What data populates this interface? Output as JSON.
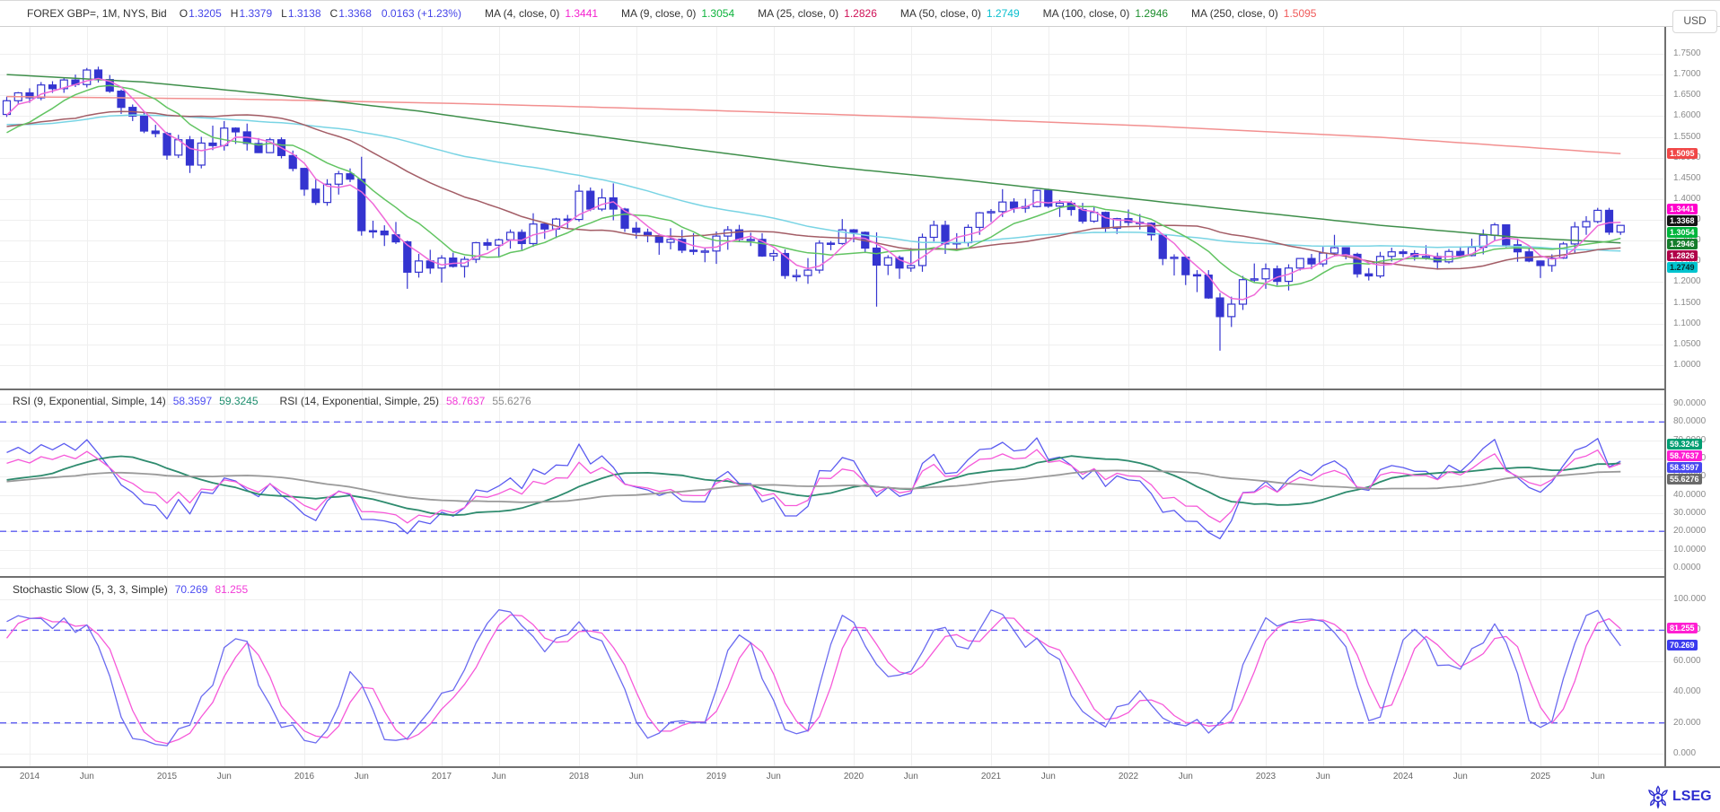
{
  "header": {
    "symbol": "FOREX GBP=, 1M, NYS, Bid",
    "value_color": "#4545e8",
    "fields": [
      {
        "k": "O",
        "v": "1.3205"
      },
      {
        "k": "H",
        "v": "1.3379"
      },
      {
        "k": "L",
        "v": "1.3138"
      },
      {
        "k": "C",
        "v": "1.3368"
      },
      {
        "k": "",
        "v": "0.0163 (+1.23%)"
      }
    ],
    "mas": [
      {
        "label": "MA (4, close, 0)",
        "value": "1.3441",
        "color": "#f421cf"
      },
      {
        "label": "MA (9, close, 0)",
        "value": "1.3054",
        "color": "#0db33c"
      },
      {
        "label": "MA (25, close, 0)",
        "value": "1.2826",
        "color": "#cf1257"
      },
      {
        "label": "MA (50, close, 0)",
        "value": "1.2749",
        "color": "#0abfcf"
      },
      {
        "label": "MA (100, close, 0)",
        "value": "1.2946",
        "color": "#1e8e2e"
      },
      {
        "label": "MA (250, close, 0)",
        "value": "1.5095",
        "color": "#f05a5a"
      }
    ],
    "currency": "USD"
  },
  "rsi_legend": {
    "label1": "RSI (9, Exponential, Simple, 14)",
    "v1": "58.3597",
    "v2": "59.3245",
    "label2": "RSI (14, Exponential, Simple, 25)",
    "v3": "58.7637",
    "v4": "55.6276",
    "c1": "#4d4df2",
    "c2": "#1e8e6e",
    "c3": "#f23bd8",
    "c4": "#8c8c8c"
  },
  "stoch_legend": {
    "label": "Stochastic Slow (5, 3, 3, Simple)",
    "v1": "70.269",
    "v2": "81.255",
    "c1": "#4d4df2",
    "c2": "#f23bd8"
  },
  "footer": {
    "brand": "LSEG",
    "color": "#2d2dd0"
  },
  "chart_data": {
    "type": "candlestick",
    "title": "FOREX GBP=, 1M, NYS, Bid - GBP/USD monthly with MA overlays, RSI and Stochastic Slow panels",
    "start_month": "2013-11",
    "months_shown": 142,
    "x_ticks": [
      [
        "2014",
        2
      ],
      [
        "Jun",
        7
      ],
      [
        "2015",
        14
      ],
      [
        "Jun",
        19
      ],
      [
        "2016",
        26
      ],
      [
        "Jun",
        31
      ],
      [
        "2017",
        38
      ],
      [
        "Jun",
        43
      ],
      [
        "2018",
        50
      ],
      [
        "Jun",
        55
      ],
      [
        "2019",
        62
      ],
      [
        "Jun",
        67
      ],
      [
        "2020",
        74
      ],
      [
        "Jun",
        79
      ],
      [
        "2021",
        86
      ],
      [
        "Jun",
        91
      ],
      [
        "2022",
        98
      ],
      [
        "Jun",
        103
      ],
      [
        "2023",
        110
      ],
      [
        "Jun",
        115
      ],
      [
        "2024",
        122
      ],
      [
        "Jun",
        127
      ],
      [
        "2025",
        134
      ],
      [
        "Jun",
        139
      ]
    ],
    "main": {
      "ylim": [
        1.0,
        1.75
      ],
      "label_step": 0.05,
      "decimals": 4,
      "grid": true,
      "up_color": "#ffffff",
      "down_color": "#3434d0",
      "outline_color": "#3434d0"
    },
    "candles": [
      [
        1.604,
        1.647,
        1.598,
        1.637
      ],
      [
        1.637,
        1.658,
        1.629,
        1.656
      ],
      [
        1.656,
        1.667,
        1.632,
        1.644
      ],
      [
        1.644,
        1.682,
        1.638,
        1.675
      ],
      [
        1.675,
        1.684,
        1.656,
        1.666
      ],
      [
        1.666,
        1.692,
        1.656,
        1.687
      ],
      [
        1.687,
        1.7,
        1.67,
        1.676
      ],
      [
        1.676,
        1.716,
        1.669,
        1.711
      ],
      [
        1.711,
        1.719,
        1.681,
        1.688
      ],
      [
        1.688,
        1.699,
        1.656,
        1.66
      ],
      [
        1.66,
        1.664,
        1.605,
        1.621
      ],
      [
        1.621,
        1.628,
        1.588,
        1.6
      ],
      [
        1.6,
        1.609,
        1.559,
        1.564
      ],
      [
        1.564,
        1.579,
        1.549,
        1.558
      ],
      [
        1.558,
        1.562,
        1.495,
        1.506
      ],
      [
        1.506,
        1.555,
        1.499,
        1.543
      ],
      [
        1.543,
        1.552,
        1.463,
        1.482
      ],
      [
        1.482,
        1.55,
        1.474,
        1.535
      ],
      [
        1.535,
        1.577,
        1.518,
        1.529
      ],
      [
        1.529,
        1.588,
        1.517,
        1.571
      ],
      [
        1.571,
        1.573,
        1.533,
        1.562
      ],
      [
        1.562,
        1.582,
        1.517,
        1.534
      ],
      [
        1.534,
        1.547,
        1.511,
        1.512
      ],
      [
        1.512,
        1.548,
        1.511,
        1.543
      ],
      [
        1.543,
        1.549,
        1.498,
        1.505
      ],
      [
        1.505,
        1.517,
        1.467,
        1.474
      ],
      [
        1.474,
        1.475,
        1.408,
        1.424
      ],
      [
        1.424,
        1.447,
        1.386,
        1.392
      ],
      [
        1.392,
        1.448,
        1.384,
        1.436
      ],
      [
        1.436,
        1.468,
        1.411,
        1.461
      ],
      [
        1.461,
        1.474,
        1.441,
        1.448
      ],
      [
        1.448,
        1.502,
        1.312,
        1.324
      ],
      [
        1.324,
        1.348,
        1.306,
        1.323
      ],
      [
        1.323,
        1.337,
        1.287,
        1.314
      ],
      [
        1.314,
        1.345,
        1.292,
        1.297
      ],
      [
        1.297,
        1.3,
        1.184,
        1.224
      ],
      [
        1.224,
        1.268,
        1.211,
        1.251
      ],
      [
        1.251,
        1.278,
        1.22,
        1.234
      ],
      [
        1.234,
        1.265,
        1.199,
        1.258
      ],
      [
        1.258,
        1.271,
        1.235,
        1.238
      ],
      [
        1.238,
        1.262,
        1.211,
        1.255
      ],
      [
        1.255,
        1.297,
        1.246,
        1.295
      ],
      [
        1.295,
        1.305,
        1.277,
        1.289
      ],
      [
        1.289,
        1.305,
        1.259,
        1.302
      ],
      [
        1.302,
        1.327,
        1.281,
        1.32
      ],
      [
        1.32,
        1.327,
        1.278,
        1.293
      ],
      [
        1.293,
        1.366,
        1.285,
        1.34
      ],
      [
        1.34,
        1.344,
        1.304,
        1.328
      ],
      [
        1.328,
        1.355,
        1.306,
        1.352
      ],
      [
        1.352,
        1.362,
        1.33,
        1.351
      ],
      [
        1.351,
        1.435,
        1.346,
        1.419
      ],
      [
        1.419,
        1.428,
        1.371,
        1.376
      ],
      [
        1.376,
        1.425,
        1.371,
        1.403
      ],
      [
        1.403,
        1.438,
        1.349,
        1.376
      ],
      [
        1.376,
        1.379,
        1.321,
        1.33
      ],
      [
        1.33,
        1.345,
        1.305,
        1.32
      ],
      [
        1.32,
        1.329,
        1.296,
        1.312
      ],
      [
        1.312,
        1.317,
        1.266,
        1.296
      ],
      [
        1.296,
        1.33,
        1.279,
        1.303
      ],
      [
        1.303,
        1.326,
        1.27,
        1.277
      ],
      [
        1.277,
        1.318,
        1.266,
        1.275
      ],
      [
        1.275,
        1.284,
        1.248,
        1.275
      ],
      [
        1.275,
        1.322,
        1.244,
        1.311
      ],
      [
        1.311,
        1.335,
        1.278,
        1.326
      ],
      [
        1.326,
        1.338,
        1.296,
        1.303
      ],
      [
        1.303,
        1.319,
        1.287,
        1.303
      ],
      [
        1.303,
        1.318,
        1.261,
        1.263
      ],
      [
        1.263,
        1.278,
        1.251,
        1.269
      ],
      [
        1.269,
        1.279,
        1.208,
        1.216
      ],
      [
        1.216,
        1.231,
        1.202,
        1.216
      ],
      [
        1.216,
        1.258,
        1.196,
        1.229
      ],
      [
        1.229,
        1.301,
        1.221,
        1.294
      ],
      [
        1.294,
        1.299,
        1.277,
        1.293
      ],
      [
        1.293,
        1.352,
        1.29,
        1.326
      ],
      [
        1.326,
        1.328,
        1.296,
        1.32
      ],
      [
        1.32,
        1.322,
        1.273,
        1.282
      ],
      [
        1.282,
        1.32,
        1.141,
        1.241
      ],
      [
        1.241,
        1.265,
        1.217,
        1.259
      ],
      [
        1.259,
        1.264,
        1.208,
        1.234
      ],
      [
        1.234,
        1.282,
        1.225,
        1.24
      ],
      [
        1.24,
        1.317,
        1.225,
        1.308
      ],
      [
        1.308,
        1.348,
        1.298,
        1.337
      ],
      [
        1.337,
        1.348,
        1.268,
        1.292
      ],
      [
        1.292,
        1.318,
        1.281,
        1.295
      ],
      [
        1.295,
        1.339,
        1.286,
        1.332
      ],
      [
        1.332,
        1.369,
        1.314,
        1.367
      ],
      [
        1.367,
        1.376,
        1.345,
        1.37
      ],
      [
        1.37,
        1.424,
        1.357,
        1.393
      ],
      [
        1.393,
        1.402,
        1.367,
        1.378
      ],
      [
        1.378,
        1.401,
        1.367,
        1.382
      ],
      [
        1.382,
        1.423,
        1.38,
        1.421
      ],
      [
        1.421,
        1.425,
        1.379,
        1.383
      ],
      [
        1.383,
        1.398,
        1.357,
        1.39
      ],
      [
        1.39,
        1.396,
        1.36,
        1.375
      ],
      [
        1.375,
        1.391,
        1.341,
        1.347
      ],
      [
        1.347,
        1.383,
        1.343,
        1.368
      ],
      [
        1.368,
        1.37,
        1.32,
        1.33
      ],
      [
        1.33,
        1.355,
        1.316,
        1.353
      ],
      [
        1.353,
        1.375,
        1.336,
        1.344
      ],
      [
        1.344,
        1.364,
        1.327,
        1.342
      ],
      [
        1.342,
        1.344,
        1.3,
        1.314
      ],
      [
        1.314,
        1.317,
        1.241,
        1.257
      ],
      [
        1.257,
        1.267,
        1.216,
        1.26
      ],
      [
        1.26,
        1.262,
        1.193,
        1.218
      ],
      [
        1.218,
        1.229,
        1.176,
        1.217
      ],
      [
        1.217,
        1.229,
        1.16,
        1.162
      ],
      [
        1.162,
        1.174,
        1.035,
        1.117
      ],
      [
        1.117,
        1.165,
        1.092,
        1.147
      ],
      [
        1.147,
        1.215,
        1.133,
        1.206
      ],
      [
        1.206,
        1.245,
        1.199,
        1.208
      ],
      [
        1.208,
        1.245,
        1.184,
        1.232
      ],
      [
        1.232,
        1.24,
        1.192,
        1.202
      ],
      [
        1.202,
        1.243,
        1.18,
        1.234
      ],
      [
        1.234,
        1.258,
        1.228,
        1.257
      ],
      [
        1.257,
        1.268,
        1.231,
        1.244
      ],
      [
        1.244,
        1.285,
        1.237,
        1.27
      ],
      [
        1.27,
        1.314,
        1.262,
        1.283
      ],
      [
        1.283,
        1.284,
        1.255,
        1.267
      ],
      [
        1.267,
        1.271,
        1.211,
        1.22
      ],
      [
        1.22,
        1.234,
        1.204,
        1.215
      ],
      [
        1.215,
        1.273,
        1.21,
        1.262
      ],
      [
        1.262,
        1.283,
        1.25,
        1.273
      ],
      [
        1.273,
        1.279,
        1.26,
        1.269
      ],
      [
        1.269,
        1.277,
        1.252,
        1.262
      ],
      [
        1.262,
        1.289,
        1.254,
        1.262
      ],
      [
        1.262,
        1.271,
        1.23,
        1.249
      ],
      [
        1.249,
        1.28,
        1.245,
        1.274
      ],
      [
        1.274,
        1.286,
        1.261,
        1.264
      ],
      [
        1.264,
        1.305,
        1.262,
        1.284
      ],
      [
        1.284,
        1.327,
        1.267,
        1.313
      ],
      [
        1.313,
        1.343,
        1.3,
        1.338
      ],
      [
        1.338,
        1.339,
        1.284,
        1.29
      ],
      [
        1.29,
        1.305,
        1.249,
        1.273
      ],
      [
        1.273,
        1.281,
        1.248,
        1.251
      ],
      [
        1.251,
        1.252,
        1.21,
        1.24
      ],
      [
        1.24,
        1.267,
        1.225,
        1.258
      ],
      [
        1.258,
        1.297,
        1.256,
        1.292
      ],
      [
        1.292,
        1.345,
        1.271,
        1.333
      ],
      [
        1.333,
        1.359,
        1.314,
        1.346
      ],
      [
        1.346,
        1.379,
        1.342,
        1.373
      ],
      [
        1.373,
        1.379,
        1.314,
        1.3205
      ],
      [
        1.3205,
        1.3379,
        1.3138,
        1.3368
      ]
    ],
    "warmup_closes": [
      1.646,
      1.644,
      1.656,
      1.617,
      1.598,
      1.523,
      1.518,
      1.532,
      1.453,
      1.495,
      1.569,
      1.535,
      1.573,
      1.603,
      1.556,
      1.561,
      1.604,
      1.626,
      1.603,
      1.67,
      1.645,
      1.605,
      1.642,
      1.625,
      1.558,
      1.61,
      1.571,
      1.554,
      1.571,
      1.593,
      1.599,
      1.624,
      1.54,
      1.569,
      1.568,
      1.587,
      1.617,
      1.612,
      1.602,
      1.625,
      1.585,
      1.516,
      1.52,
      1.553,
      1.52,
      1.521,
      1.517,
      1.55,
      1.618,
      1.604
    ],
    "overlays": [
      {
        "name": "MA 250",
        "color": "#f29090",
        "keyframes": [
          [
            0,
            1.647
          ],
          [
            20,
            1.641
          ],
          [
            40,
            1.63
          ],
          [
            60,
            1.615
          ],
          [
            80,
            1.597
          ],
          [
            100,
            1.576
          ],
          [
            120,
            1.549
          ],
          [
            141,
            1.5095
          ]
        ]
      },
      {
        "name": "MA 100",
        "color": "#3f8f4b",
        "keyframes": [
          [
            0,
            1.7
          ],
          [
            12,
            1.682
          ],
          [
            24,
            1.65
          ],
          [
            36,
            1.612
          ],
          [
            48,
            1.565
          ],
          [
            60,
            1.52
          ],
          [
            72,
            1.478
          ],
          [
            84,
            1.445
          ],
          [
            96,
            1.408
          ],
          [
            108,
            1.372
          ],
          [
            120,
            1.337
          ],
          [
            132,
            1.308
          ],
          [
            141,
            1.2946
          ]
        ]
      },
      {
        "name": "MA 50",
        "period": 50,
        "color": "#79d4e4"
      },
      {
        "name": "MA 25",
        "period": 25,
        "color": "#a35d66"
      },
      {
        "name": "MA 9",
        "period": 9,
        "color": "#62c462"
      },
      {
        "name": "MA 4",
        "period": 4,
        "color": "#ef6ad8"
      }
    ],
    "price_badges": [
      {
        "text": "1.5095",
        "value": 1.5095,
        "bg": "#f04747",
        "fg": "#ffffff"
      },
      {
        "text": "1.3441",
        "value": 1.3441,
        "bg": "#ff00cc",
        "fg": "#ffffff"
      },
      {
        "text": "1.3368",
        "value": 1.3368,
        "bg": "#151515",
        "fg": "#ffffff"
      },
      {
        "text": "1.3054",
        "value": 1.3054,
        "bg": "#00b53c",
        "fg": "#ffffff"
      },
      {
        "text": "1.2946",
        "value": 1.2946,
        "bg": "#157d2c",
        "fg": "#ffffff"
      },
      {
        "text": "1.2826",
        "value": 1.2826,
        "bg": "#b00048",
        "fg": "#ffffff"
      },
      {
        "text": "1.2749",
        "value": 1.2749,
        "bg": "#00c4cf",
        "fg": "#0a2a2a"
      }
    ],
    "rsi": {
      "bands": [
        80,
        20
      ],
      "label_step": 10,
      "label_decimals": 4,
      "ylim": [
        0,
        90
      ],
      "lines": [
        {
          "name": "RSI 9",
          "period": 9,
          "color": "#5b5bf0"
        },
        {
          "name": "Signal 14",
          "signal_of": "RSI 9",
          "period": 14,
          "color": "#2e8b6e"
        },
        {
          "name": "RSI 14",
          "period": 14,
          "color": "#f659d9"
        },
        {
          "name": "Signal 25",
          "signal_of": "RSI 14",
          "period": 25,
          "color": "#9a9a9a"
        }
      ],
      "badges": [
        {
          "text": "59.3245",
          "value": 59.3245,
          "bg": "#009e72",
          "fg": "#ffffff"
        },
        {
          "text": "58.7637",
          "value": 58.7637,
          "bg": "#ff1fd2",
          "fg": "#ffffff"
        },
        {
          "text": "58.3597",
          "value": 58.3597,
          "bg": "#4747ef",
          "fg": "#ffffff"
        },
        {
          "text": "55.6276",
          "value": 55.6276,
          "bg": "#6a6a6a",
          "fg": "#ffffff"
        }
      ]
    },
    "stoch": {
      "k_period": 5,
      "k_smooth": 3,
      "d_period": 3,
      "bands": [
        80,
        20
      ],
      "label_step": 20,
      "label_decimals": 3,
      "ylim": [
        0,
        100
      ],
      "k_color": "#6b6bf0",
      "d_color": "#f659d9",
      "badges": [
        {
          "text": "81.255",
          "value": 81.255,
          "bg": "#ff1fd2",
          "fg": "#ffffff"
        },
        {
          "text": "70.269",
          "value": 70.269,
          "bg": "#3b3bef",
          "fg": "#ffffff"
        }
      ]
    }
  }
}
